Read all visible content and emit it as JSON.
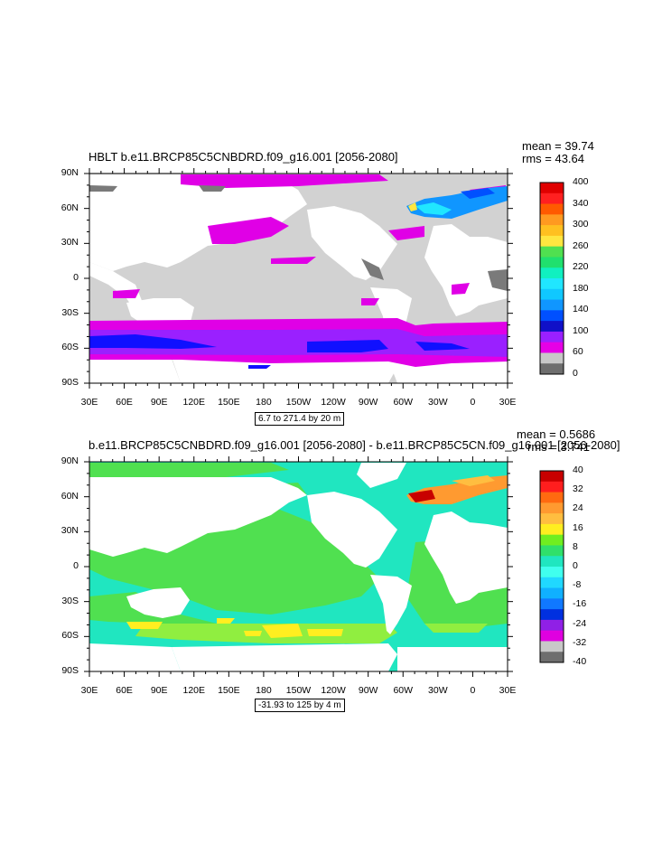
{
  "colors": {
    "land": "#ffffff",
    "ocean_low": "#d2d2d2",
    "ocean_dark": "#7a7a7a"
  },
  "chart_data": [
    {
      "type": "heatmap",
      "title": "HBLT b.e11.BRCP85C5CNBDRD.f09_g16.001 [2056-2080]",
      "mean_label": "mean = 39.74",
      "rms_label": "rms = 43.64",
      "x_tick_labels": [
        "30E",
        "60E",
        "90E",
        "120E",
        "150E",
        "180",
        "150W",
        "120W",
        "90W",
        "60W",
        "30W",
        "0",
        "30E"
      ],
      "y_tick_labels": [
        "90N",
        "60N",
        "30N",
        "0",
        "30S",
        "60S",
        "90S"
      ],
      "info_box": "6.7 to 271.4 by 20 m",
      "colorbar": {
        "labels": [
          "400",
          "340",
          "300",
          "260",
          "220",
          "180",
          "140",
          "100",
          "60",
          "0"
        ],
        "colors": [
          "#e00000",
          "#ff2020",
          "#ff5a00",
          "#ff9a20",
          "#ffc020",
          "#ffe640",
          "#50e050",
          "#20e06e",
          "#10f0c0",
          "#20e6ff",
          "#10c8ff",
          "#1096ff",
          "#0050ff",
          "#1010c8",
          "#9a20ff",
          "#e600e6",
          "#c8c8c8",
          "#6e6e6e"
        ]
      }
    },
    {
      "type": "heatmap",
      "title": "b.e11.BRCP85C5CNBDRD.f09_g16.001 [2056-2080] - b.e11.BRCP85C5CN.f09_g16.001 [2056-2080]",
      "mean_label": "mean = 0.5686",
      "rms_label": "rms = 3.741",
      "x_tick_labels": [
        "30E",
        "60E",
        "90E",
        "120E",
        "150E",
        "180",
        "150W",
        "120W",
        "90W",
        "60W",
        "30W",
        "0",
        "30E"
      ],
      "y_tick_labels": [
        "90N",
        "60N",
        "30N",
        "0",
        "30S",
        "60S",
        "90S"
      ],
      "info_box": "-31.93 to 125 by 4 m",
      "colorbar": {
        "labels": [
          "40",
          "32",
          "24",
          "16",
          "8",
          "0",
          "-8",
          "-16",
          "-24",
          "-32",
          "-40"
        ],
        "colors": [
          "#c80000",
          "#ff1e1e",
          "#ff6a10",
          "#ff9a30",
          "#ffbe40",
          "#ffee20",
          "#70ee20",
          "#30e06a",
          "#20e6c0",
          "#40ffee",
          "#20d8ff",
          "#10b0ff",
          "#1078ff",
          "#0030e0",
          "#9020e6",
          "#e000e0",
          "#c8c8c8",
          "#6e6e6e"
        ]
      }
    }
  ]
}
